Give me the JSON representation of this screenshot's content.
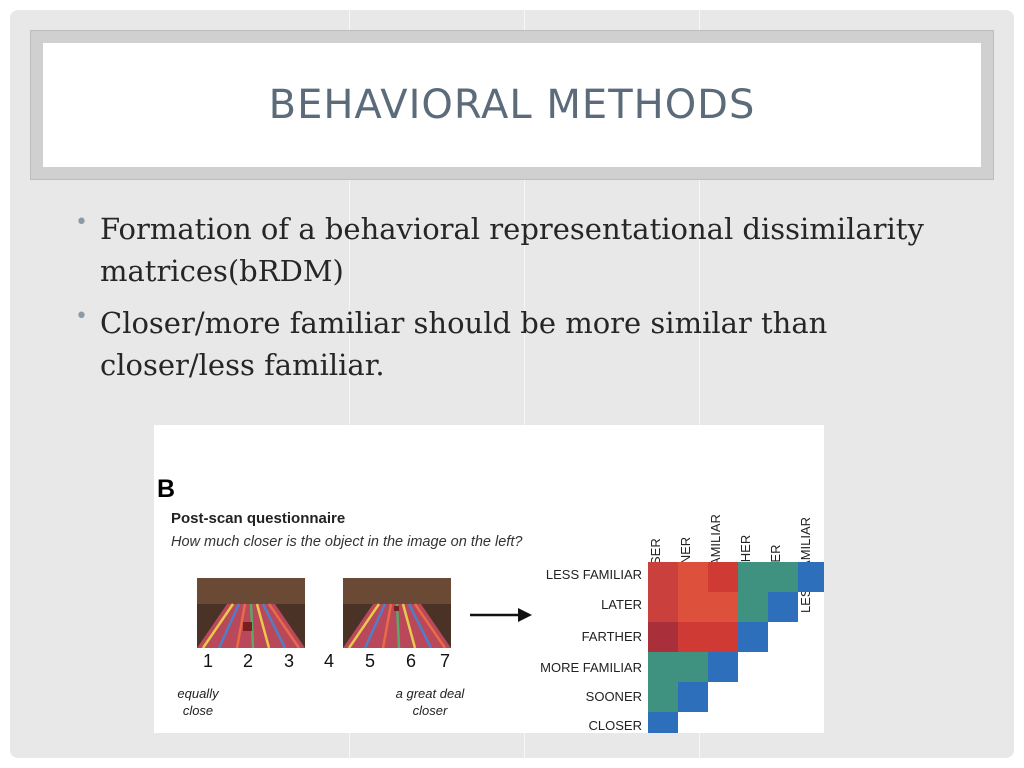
{
  "slide": {
    "title": "Behavioral Methods",
    "bullets": [
      "Formation of a behavioral representational dissimilarity matrices(bRDM)",
      "Closer/more familiar should be more similar than closer/less familiar."
    ]
  },
  "figure": {
    "panel_letter": "B",
    "questionnaire_title": "Post-scan questionnaire",
    "question": "How much closer is the object in the image on the left?",
    "scale_numbers": [
      "1",
      "2",
      "3",
      "4",
      "5",
      "6",
      "7"
    ],
    "scale_left_anchor": "equally close",
    "scale_right_anchor": "a great deal closer",
    "matrix": {
      "column_labels": [
        "CLOSER",
        "SOONER",
        "MORE FAMILIAR",
        "FARTHER",
        "LATER",
        "LESS FAMILIAR"
      ],
      "row_labels": [
        "LESS FAMILIAR",
        "LATER",
        "FARTHER",
        "MORE FAMILIAR",
        "SOONER",
        "CLOSER"
      ],
      "cells": [
        [
          "#c9403c",
          "#dd503c",
          "#cf3a35",
          "#3f9280",
          "#3f9280",
          "#2e6fbb"
        ],
        [
          "#c9403c",
          "#dd503c",
          "#dd503c",
          "#3f9280",
          "#2e6fbb",
          null
        ],
        [
          "#a9303a",
          "#cf3a35",
          "#cf3a35",
          "#2e6fbb",
          null,
          null
        ],
        [
          "#3f9280",
          "#3f9280",
          "#2e6fbb",
          null,
          null,
          null
        ],
        [
          "#3f9280",
          "#2e6fbb",
          null,
          null,
          null,
          null
        ],
        [
          "#2e6fbb",
          null,
          null,
          null,
          null,
          null
        ]
      ]
    }
  }
}
